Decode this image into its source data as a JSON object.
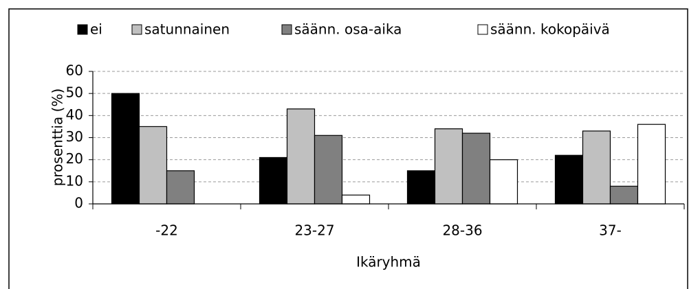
{
  "chart_data": {
    "type": "bar",
    "categories": [
      "-22",
      "23-27",
      "28-36",
      "37-"
    ],
    "series": [
      {
        "name": "ei",
        "color": "#000000",
        "values": [
          50,
          21,
          15,
          22
        ]
      },
      {
        "name": "satunnainen",
        "color": "#c0c0c0",
        "values": [
          35,
          43,
          34,
          33
        ]
      },
      {
        "name": "säänn. osa-aika",
        "color": "#808080",
        "values": [
          15,
          31,
          32,
          8
        ]
      },
      {
        "name": "säänn. kokopäivä",
        "color": "#ffffff",
        "values": [
          0,
          4,
          20,
          36
        ]
      }
    ],
    "y_label": "prosenttia (%)",
    "x_label": "Ikäryhmä",
    "ylim": [
      0,
      60
    ],
    "yticks": [
      0,
      10,
      20,
      30,
      40,
      50,
      60
    ],
    "grid": true,
    "legend": "top"
  }
}
